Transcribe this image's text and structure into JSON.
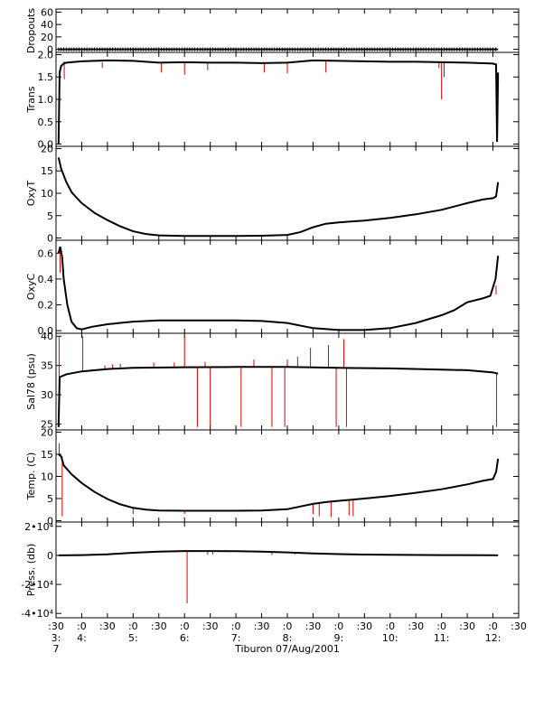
{
  "chart_data": {
    "type": "line",
    "caption": "Tiburon 07/Aug/2001",
    "colors": {
      "line": "#000000",
      "spike": "#e00000"
    },
    "x_axis": {
      "unit": "hour of day",
      "range": [
        3.5,
        12.5
      ],
      "ticks": [
        {
          "x": 3.5,
          "top": ":30",
          "mid": "3:",
          "bot": "7"
        },
        {
          "x": 4.0,
          "top": ":0",
          "mid": "4:",
          "bot": ""
        },
        {
          "x": 4.5,
          "top": ":30",
          "mid": "",
          "bot": ""
        },
        {
          "x": 5.0,
          "top": ":0",
          "mid": "5:",
          "bot": ""
        },
        {
          "x": 5.5,
          "top": ":30",
          "mid": "",
          "bot": ""
        },
        {
          "x": 6.0,
          "top": ":0",
          "mid": "6:",
          "bot": ""
        },
        {
          "x": 6.5,
          "top": ":30",
          "mid": "",
          "bot": ""
        },
        {
          "x": 7.0,
          "top": ":0",
          "mid": "7:",
          "bot": ""
        },
        {
          "x": 7.5,
          "top": ":30",
          "mid": "",
          "bot": ""
        },
        {
          "x": 8.0,
          "top": ":0",
          "mid": "8:",
          "bot": ""
        },
        {
          "x": 8.5,
          "top": ":30",
          "mid": "",
          "bot": ""
        },
        {
          "x": 9.0,
          "top": ":0",
          "mid": "9:",
          "bot": ""
        },
        {
          "x": 9.5,
          "top": ":30",
          "mid": "",
          "bot": ""
        },
        {
          "x": 10.0,
          "top": ":0",
          "mid": "10:",
          "bot": ""
        },
        {
          "x": 10.5,
          "top": ":30",
          "mid": "",
          "bot": ""
        },
        {
          "x": 11.0,
          "top": ":0",
          "mid": "11:",
          "bot": ""
        },
        {
          "x": 11.5,
          "top": ":30",
          "mid": "",
          "bot": ""
        },
        {
          "x": 12.0,
          "top": ":0",
          "mid": "12:",
          "bot": ""
        },
        {
          "x": 12.5,
          "top": ":30",
          "mid": "",
          "bot": ""
        }
      ]
    },
    "panels": [
      {
        "ylabel": "Dropouts",
        "ylim": [
          -5,
          65
        ],
        "yticks": [
          {
            "v": 0,
            "l": "0"
          },
          {
            "v": 20,
            "l": "20"
          },
          {
            "v": 40,
            "l": "40"
          },
          {
            "v": 60,
            "l": "60"
          }
        ],
        "marker_series": true,
        "series": [
          [
            3.55,
            0
          ],
          [
            12.1,
            0
          ]
        ],
        "spikes": []
      },
      {
        "ylabel": "Trans",
        "ylim": [
          -0.05,
          2.05
        ],
        "yticks": [
          {
            "v": 0,
            "l": "0.0"
          },
          {
            "v": 0.5,
            "l": "0.5"
          },
          {
            "v": 1.0,
            "l": "1.0"
          },
          {
            "v": 1.5,
            "l": "1.5"
          },
          {
            "v": 2.0,
            "l": "2.0"
          }
        ],
        "series": [
          [
            3.55,
            0.0
          ],
          [
            3.57,
            1.6
          ],
          [
            3.6,
            1.75
          ],
          [
            3.65,
            1.8
          ],
          [
            3.7,
            1.82
          ],
          [
            4.0,
            1.85
          ],
          [
            4.5,
            1.87
          ],
          [
            5.0,
            1.86
          ],
          [
            5.5,
            1.82
          ],
          [
            6.0,
            1.83
          ],
          [
            6.5,
            1.82
          ],
          [
            7.0,
            1.82
          ],
          [
            7.5,
            1.81
          ],
          [
            8.0,
            1.82
          ],
          [
            8.3,
            1.85
          ],
          [
            8.5,
            1.87
          ],
          [
            9.0,
            1.86
          ],
          [
            9.5,
            1.85
          ],
          [
            10.0,
            1.84
          ],
          [
            10.5,
            1.84
          ],
          [
            11.0,
            1.83
          ],
          [
            11.5,
            1.82
          ],
          [
            12.0,
            1.8
          ],
          [
            12.06,
            1.78
          ],
          [
            12.08,
            0.05
          ],
          [
            12.1,
            1.6
          ]
        ],
        "spikes": [
          [
            3.66,
            1.85,
            1.45
          ],
          [
            4.4,
            1.83,
            1.7
          ],
          [
            5.55,
            1.82,
            1.6
          ],
          [
            6.0,
            1.83,
            1.55
          ],
          [
            6.45,
            1.82,
            1.65
          ],
          [
            7.55,
            1.81,
            1.6
          ],
          [
            8.0,
            1.82,
            1.58
          ],
          [
            8.75,
            1.86,
            1.6
          ],
          [
            10.95,
            1.84,
            1.7
          ],
          [
            11.0,
            1.84,
            1.0
          ],
          [
            11.05,
            1.83,
            1.5
          ]
        ]
      },
      {
        "ylabel": "OxyT",
        "ylim": [
          -0.5,
          20.5
        ],
        "yticks": [
          {
            "v": 0,
            "l": "0"
          },
          {
            "v": 5,
            "l": "5"
          },
          {
            "v": 10,
            "l": "10"
          },
          {
            "v": 15,
            "l": "15"
          },
          {
            "v": 20,
            "l": "20"
          }
        ],
        "series": [
          [
            3.55,
            18.0
          ],
          [
            3.6,
            15.5
          ],
          [
            3.7,
            12.5
          ],
          [
            3.8,
            10.3
          ],
          [
            3.9,
            9.0
          ],
          [
            4.0,
            7.8
          ],
          [
            4.25,
            5.6
          ],
          [
            4.5,
            4.0
          ],
          [
            4.75,
            2.6
          ],
          [
            5.0,
            1.5
          ],
          [
            5.25,
            0.9
          ],
          [
            5.5,
            0.6
          ],
          [
            6.0,
            0.45
          ],
          [
            7.0,
            0.45
          ],
          [
            7.5,
            0.5
          ],
          [
            8.0,
            0.7
          ],
          [
            8.25,
            1.3
          ],
          [
            8.5,
            2.4
          ],
          [
            8.75,
            3.2
          ],
          [
            9.0,
            3.5
          ],
          [
            9.5,
            3.9
          ],
          [
            10.0,
            4.5
          ],
          [
            10.5,
            5.3
          ],
          [
            11.0,
            6.3
          ],
          [
            11.5,
            7.8
          ],
          [
            11.8,
            8.6
          ],
          [
            12.0,
            8.9
          ],
          [
            12.06,
            9.3
          ],
          [
            12.1,
            12.5
          ]
        ],
        "spikes": []
      },
      {
        "ylabel": "OxyC",
        "ylim": [
          -0.02,
          0.7
        ],
        "yticks": [
          {
            "v": 0,
            "l": "0.0"
          },
          {
            "v": 0.2,
            "l": "0.2"
          },
          {
            "v": 0.4,
            "l": "0.4"
          },
          {
            "v": 0.6,
            "l": "0.6"
          }
        ],
        "series": [
          [
            3.55,
            0.6
          ],
          [
            3.58,
            0.65
          ],
          [
            3.62,
            0.57
          ],
          [
            3.65,
            0.4
          ],
          [
            3.72,
            0.2
          ],
          [
            3.8,
            0.07
          ],
          [
            3.9,
            0.02
          ],
          [
            4.0,
            0.01
          ],
          [
            4.2,
            0.03
          ],
          [
            4.5,
            0.05
          ],
          [
            5.0,
            0.07
          ],
          [
            5.5,
            0.08
          ],
          [
            6.0,
            0.08
          ],
          [
            7.0,
            0.08
          ],
          [
            7.5,
            0.075
          ],
          [
            8.0,
            0.06
          ],
          [
            8.5,
            0.02
          ],
          [
            9.0,
            0.005
          ],
          [
            9.5,
            0.005
          ],
          [
            10.0,
            0.02
          ],
          [
            10.5,
            0.06
          ],
          [
            11.0,
            0.12
          ],
          [
            11.25,
            0.16
          ],
          [
            11.5,
            0.22
          ],
          [
            11.8,
            0.25
          ],
          [
            11.95,
            0.27
          ],
          [
            12.05,
            0.4
          ],
          [
            12.1,
            0.58
          ]
        ],
        "spikes": [
          [
            3.58,
            0.65,
            0.45
          ],
          [
            12.06,
            0.35,
            0.28
          ]
        ]
      },
      {
        "ylabel": "Sal78 (psu)",
        "ylim": [
          24,
          40.5
        ],
        "yticks": [
          {
            "v": 25,
            "l": "25"
          },
          {
            "v": 30,
            "l": "30"
          },
          {
            "v": 35,
            "l": "35"
          },
          {
            "v": 40,
            "l": "40"
          }
        ],
        "series": [
          [
            3.55,
            24.5
          ],
          [
            3.57,
            33.0
          ],
          [
            3.7,
            33.5
          ],
          [
            4.0,
            34.0
          ],
          [
            4.5,
            34.4
          ],
          [
            5.0,
            34.6
          ],
          [
            6.0,
            34.7
          ],
          [
            7.0,
            34.75
          ],
          [
            8.0,
            34.75
          ],
          [
            9.0,
            34.6
          ],
          [
            10.0,
            34.5
          ],
          [
            11.0,
            34.3
          ],
          [
            11.5,
            34.2
          ],
          [
            12.0,
            33.8
          ],
          [
            12.1,
            33.6
          ]
        ],
        "spikes": [
          [
            3.56,
            40.0,
            24.5
          ],
          [
            4.02,
            40.0,
            34.0
          ],
          [
            4.45,
            35.0,
            34.4
          ],
          [
            4.6,
            35.2,
            34.5
          ],
          [
            4.75,
            35.3,
            34.5
          ],
          [
            5.4,
            35.5,
            34.6
          ],
          [
            5.8,
            35.5,
            34.7
          ],
          [
            6.0,
            40.0,
            34.7
          ],
          [
            6.25,
            34.7,
            24.5
          ],
          [
            6.4,
            35.6,
            34.7
          ],
          [
            6.5,
            34.7,
            24.5
          ],
          [
            7.1,
            34.75,
            24.5
          ],
          [
            7.35,
            36.0,
            34.75
          ],
          [
            7.7,
            34.75,
            24.5
          ],
          [
            7.95,
            34.75,
            24.5
          ],
          [
            8.0,
            36.0,
            34.7
          ],
          [
            8.2,
            36.5,
            34.7
          ],
          [
            8.45,
            38.0,
            34.6
          ],
          [
            8.8,
            38.5,
            34.6
          ],
          [
            8.95,
            34.6,
            24.5
          ],
          [
            9.1,
            39.5,
            34.5
          ],
          [
            9.15,
            34.5,
            24.5
          ],
          [
            12.07,
            33.8,
            24.5
          ]
        ]
      },
      {
        "ylabel": "Temp. (C)",
        "ylim": [
          -0.3,
          20.5
        ],
        "yticks": [
          {
            "v": 0,
            "l": "0"
          },
          {
            "v": 5,
            "l": "5"
          },
          {
            "v": 10,
            "l": "10"
          },
          {
            "v": 15,
            "l": "15"
          },
          {
            "v": 20,
            "l": "20"
          }
        ],
        "series": [
          [
            3.55,
            15.0
          ],
          [
            3.6,
            14.5
          ],
          [
            3.65,
            12.5
          ],
          [
            3.8,
            10.5
          ],
          [
            4.0,
            8.5
          ],
          [
            4.25,
            6.5
          ],
          [
            4.5,
            4.9
          ],
          [
            4.75,
            3.7
          ],
          [
            5.0,
            2.9
          ],
          [
            5.25,
            2.5
          ],
          [
            5.5,
            2.3
          ],
          [
            6.0,
            2.25
          ],
          [
            7.0,
            2.25
          ],
          [
            7.5,
            2.3
          ],
          [
            8.0,
            2.6
          ],
          [
            8.25,
            3.2
          ],
          [
            8.5,
            3.8
          ],
          [
            8.75,
            4.2
          ],
          [
            9.0,
            4.5
          ],
          [
            9.5,
            5.0
          ],
          [
            10.0,
            5.6
          ],
          [
            10.5,
            6.3
          ],
          [
            11.0,
            7.1
          ],
          [
            11.5,
            8.2
          ],
          [
            11.8,
            9.0
          ],
          [
            12.0,
            9.4
          ],
          [
            12.06,
            11.0
          ],
          [
            12.1,
            14.0
          ]
        ],
        "spikes": [
          [
            3.56,
            17.5,
            15.0
          ],
          [
            3.62,
            14.5,
            1.0
          ],
          [
            5.0,
            2.9,
            1.5
          ],
          [
            6.0,
            2.25,
            1.5
          ],
          [
            8.5,
            3.8,
            1.5
          ],
          [
            8.62,
            4.0,
            1.0
          ],
          [
            8.85,
            4.3,
            0.8
          ],
          [
            9.2,
            4.6,
            1.2
          ],
          [
            9.28,
            4.7,
            1.0
          ]
        ]
      },
      {
        "ylabel": "Press. (db)",
        "ylim": [
          -43000,
          23000
        ],
        "yticks": [
          {
            "v": -40000,
            "l": "-4•10⁴"
          },
          {
            "v": -20000,
            "l": "-2•10⁴"
          },
          {
            "v": 0,
            "l": "0"
          },
          {
            "v": 20000,
            "l": "2•10⁴"
          }
        ],
        "series": [
          [
            3.55,
            0
          ],
          [
            4.0,
            200
          ],
          [
            4.5,
            800
          ],
          [
            5.0,
            1800
          ],
          [
            5.5,
            2600
          ],
          [
            6.0,
            3000
          ],
          [
            6.5,
            3000
          ],
          [
            7.0,
            2900
          ],
          [
            7.5,
            2600
          ],
          [
            8.0,
            2100
          ],
          [
            8.5,
            1400
          ],
          [
            9.0,
            900
          ],
          [
            9.5,
            600
          ],
          [
            10.0,
            400
          ],
          [
            11.0,
            200
          ],
          [
            12.0,
            100
          ],
          [
            12.1,
            0
          ]
        ],
        "spikes": [
          [
            6.05,
            3000,
            -33000
          ],
          [
            6.45,
            3000,
            500
          ],
          [
            6.55,
            3000,
            700
          ],
          [
            7.7,
            2400,
            200
          ],
          [
            8.15,
            1900,
            800
          ]
        ]
      }
    ]
  }
}
